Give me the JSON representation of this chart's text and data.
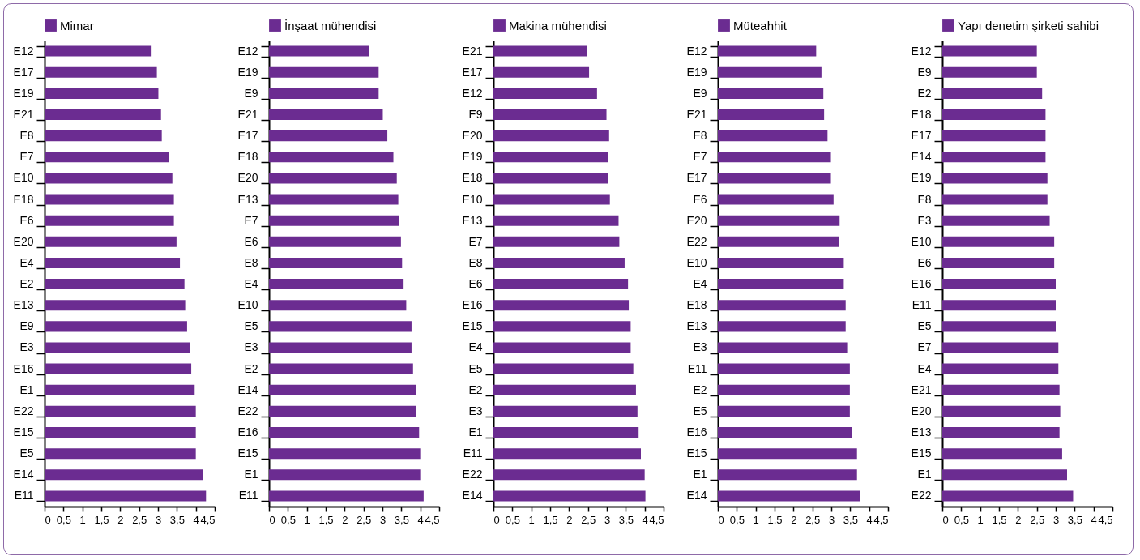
{
  "chart_data": [
    {
      "type": "bar",
      "orientation": "horizontal",
      "legend": "top left",
      "categories": [
        "E12",
        "E17",
        "E19",
        "E21",
        "E8",
        "E7",
        "E10",
        "E18",
        "E6",
        "E20",
        "E4",
        "E2",
        "E13",
        "E9",
        "E3",
        "E16",
        "E1",
        "E22",
        "E15",
        "E5",
        "E14",
        "E11"
      ],
      "series": [
        {
          "name": "Mimar",
          "color": "#6b2c91",
          "values": [
            2.81,
            2.97,
            3.01,
            3.08,
            3.1,
            3.29,
            3.38,
            3.42,
            3.42,
            3.49,
            3.58,
            3.7,
            3.72,
            3.77,
            3.84,
            3.88,
            3.97,
            4.0,
            4.0,
            4.0,
            4.2,
            4.27
          ]
        }
      ],
      "xlim": [
        0,
        4.5
      ],
      "xticks": [
        0,
        {
          "value": 0.5,
          "label": "0,5"
        },
        1,
        {
          "value": 1.5,
          "label": "1,5"
        },
        2,
        {
          "value": 2.5,
          "label": "2,5"
        },
        3,
        {
          "value": 3.5,
          "label": "3,5"
        },
        4,
        {
          "value": 4.5,
          "label": "4,5"
        }
      ]
    },
    {
      "type": "bar",
      "orientation": "horizontal",
      "legend": "top left",
      "categories": [
        "E12",
        "E19",
        "E9",
        "E21",
        "E17",
        "E18",
        "E20",
        "E13",
        "E7",
        "E6",
        "E8",
        "E4",
        "E10",
        "E5",
        "E3",
        "E2",
        "E14",
        "E22",
        "E16",
        "E15",
        "E1",
        "E11"
      ],
      "series": [
        {
          "name": "İnşaat mühendisi",
          "color": "#6b2c91",
          "values": [
            2.65,
            2.9,
            2.9,
            3.01,
            3.13,
            3.29,
            3.38,
            3.42,
            3.45,
            3.49,
            3.52,
            3.56,
            3.63,
            3.77,
            3.77,
            3.81,
            3.88,
            3.9,
            3.97,
            4.0,
            4.0,
            4.09
          ]
        }
      ],
      "xlim": [
        0,
        4.5
      ],
      "xticks": [
        0,
        {
          "value": 0.5,
          "label": "0,5"
        },
        1,
        {
          "value": 1.5,
          "label": "1,5"
        },
        2,
        {
          "value": 2.5,
          "label": "2,5"
        },
        3,
        {
          "value": 3.5,
          "label": "3,5"
        },
        4,
        {
          "value": 4.5,
          "label": "4,5"
        }
      ]
    },
    {
      "type": "bar",
      "orientation": "horizontal",
      "legend": "top left",
      "categories": [
        "E21",
        "E17",
        "E12",
        "E9",
        "E20",
        "E19",
        "E18",
        "E10",
        "E13",
        "E7",
        "E8",
        "E6",
        "E16",
        "E15",
        "E4",
        "E5",
        "E2",
        "E3",
        "E1",
        "E11",
        "E22",
        "E14"
      ],
      "series": [
        {
          "name": "Makina mühendisi",
          "color": "#6b2c91",
          "values": [
            2.47,
            2.53,
            2.74,
            2.99,
            3.06,
            3.04,
            3.04,
            3.08,
            3.31,
            3.33,
            3.47,
            3.56,
            3.58,
            3.63,
            3.63,
            3.7,
            3.77,
            3.81,
            3.84,
            3.9,
            4.0,
            4.02
          ]
        }
      ],
      "xlim": [
        0,
        4.5
      ],
      "xticks": [
        0,
        {
          "value": 0.5,
          "label": "0,5"
        },
        1,
        {
          "value": 1.5,
          "label": "1,5"
        },
        2,
        {
          "value": 2.5,
          "label": "2,5"
        },
        3,
        {
          "value": 3.5,
          "label": "3,5"
        },
        4,
        {
          "value": 4.5,
          "label": "4,5"
        }
      ]
    },
    {
      "type": "bar",
      "orientation": "horizontal",
      "legend": "top left",
      "categories": [
        "E12",
        "E19",
        "E9",
        "E21",
        "E8",
        "E7",
        "E17",
        "E6",
        "E20",
        "E22",
        "E10",
        "E4",
        "E18",
        "E13",
        "E3",
        "E11",
        "E2",
        "E5",
        "E16",
        "E15",
        "E1",
        "E14"
      ],
      "series": [
        {
          "name": "Müteahhit",
          "color": "#6b2c91",
          "values": [
            2.6,
            2.74,
            2.79,
            2.81,
            2.9,
            2.99,
            2.99,
            3.06,
            3.22,
            3.2,
            3.33,
            3.33,
            3.38,
            3.38,
            3.42,
            3.49,
            3.49,
            3.49,
            3.54,
            3.68,
            3.68,
            3.77
          ]
        }
      ],
      "xlim": [
        0,
        4.5
      ],
      "xticks": [
        0,
        {
          "value": 0.5,
          "label": "0,5"
        },
        1,
        {
          "value": 1.5,
          "label": "1,5"
        },
        2,
        {
          "value": 2.5,
          "label": "2,5"
        },
        3,
        {
          "value": 3.5,
          "label": "3,5"
        },
        4,
        {
          "value": 4.5,
          "label": "4,5"
        }
      ]
    },
    {
      "type": "bar",
      "orientation": "horizontal",
      "legend": "top left",
      "categories": [
        "E12",
        "E9",
        "E2",
        "E18",
        "E17",
        "E14",
        "E19",
        "E8",
        "E3",
        "E10",
        "E6",
        "E16",
        "E11",
        "E5",
        "E7",
        "E4",
        "E21",
        "E20",
        "E13",
        "E15",
        "E1",
        "E22"
      ],
      "series": [
        {
          "name": "Yapı denetim şirketi sahibi",
          "color": "#6b2c91",
          "values": [
            2.5,
            2.5,
            2.64,
            2.73,
            2.73,
            2.73,
            2.78,
            2.78,
            2.84,
            2.96,
            2.96,
            3.0,
            3.0,
            3.0,
            3.07,
            3.07,
            3.1,
            3.12,
            3.1,
            3.17,
            3.3,
            3.46
          ]
        }
      ],
      "xlim": [
        0,
        4.5
      ],
      "xticks": [
        0,
        {
          "value": 0.5,
          "label": "0,5"
        },
        1,
        {
          "value": 1.5,
          "label": "1,5"
        },
        2,
        {
          "value": 2.5,
          "label": "2,5"
        },
        3,
        {
          "value": 3.5,
          "label": "3,5"
        },
        4,
        {
          "value": 4.5,
          "label": "4,5"
        }
      ]
    }
  ]
}
